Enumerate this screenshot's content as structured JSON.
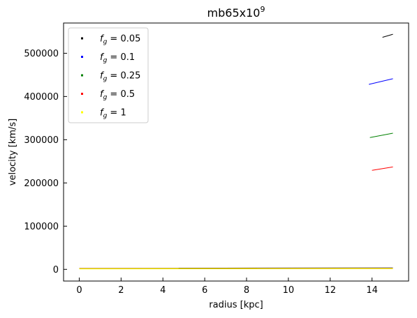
{
  "chart_data": {
    "type": "scatter",
    "title": "mb65x10",
    "title_superscript": "9",
    "xlabel": "radius [kpc]",
    "ylabel": "velocity [km/s]",
    "xlim": [
      -0.75,
      15.75
    ],
    "ylim": [
      -27000,
      570000
    ],
    "xticks": [
      0,
      2,
      4,
      6,
      8,
      10,
      12,
      14
    ],
    "xtick_labels": [
      "0",
      "2",
      "4",
      "6",
      "8",
      "10",
      "12",
      "14"
    ],
    "yticks": [
      0,
      100000,
      200000,
      300000,
      400000,
      500000
    ],
    "ytick_labels": [
      "0",
      "100000",
      "200000",
      "300000",
      "400000",
      "500000"
    ],
    "grid": false,
    "legend_position": "top-left",
    "series": [
      {
        "name": "f_g = 0.05",
        "legend_label": "= 0.05",
        "color": "#000000",
        "upper": {
          "x": [
            14.5,
            15.0
          ],
          "y": [
            537000,
            544000
          ]
        },
        "lower": {
          "x": [
            4.75,
            15.0
          ],
          "y": [
            2500,
            3200
          ]
        }
      },
      {
        "name": "f_g = 0.1",
        "legend_label": "= 0.1",
        "color": "#0000ff",
        "upper": {
          "x": [
            13.85,
            15.0
          ],
          "y": [
            428000,
            441000
          ]
        },
        "lower": {
          "x": [
            8.5,
            15.0
          ],
          "y": [
            2300,
            2800
          ]
        }
      },
      {
        "name": "f_g = 0.25",
        "legend_label": "= 0.25",
        "color": "#008000",
        "upper": {
          "x": [
            13.9,
            15.0
          ],
          "y": [
            305000,
            315000
          ]
        },
        "lower": {
          "x": [
            0.0,
            15.0
          ],
          "y": [
            2000,
            2600
          ]
        }
      },
      {
        "name": "f_g = 0.5",
        "legend_label": "= 0.5",
        "color": "#ff0000",
        "upper": {
          "x": [
            14.0,
            15.0
          ],
          "y": [
            229000,
            237000
          ]
        },
        "lower": {
          "x": [
            0.0,
            15.0
          ],
          "y": [
            1700,
            2300
          ]
        }
      },
      {
        "name": "f_g = 1",
        "legend_label": "= 1",
        "color": "#ffff00",
        "upper": null,
        "lower": {
          "x": [
            0.0,
            15.0
          ],
          "y": [
            1200,
            1900
          ]
        }
      }
    ]
  }
}
